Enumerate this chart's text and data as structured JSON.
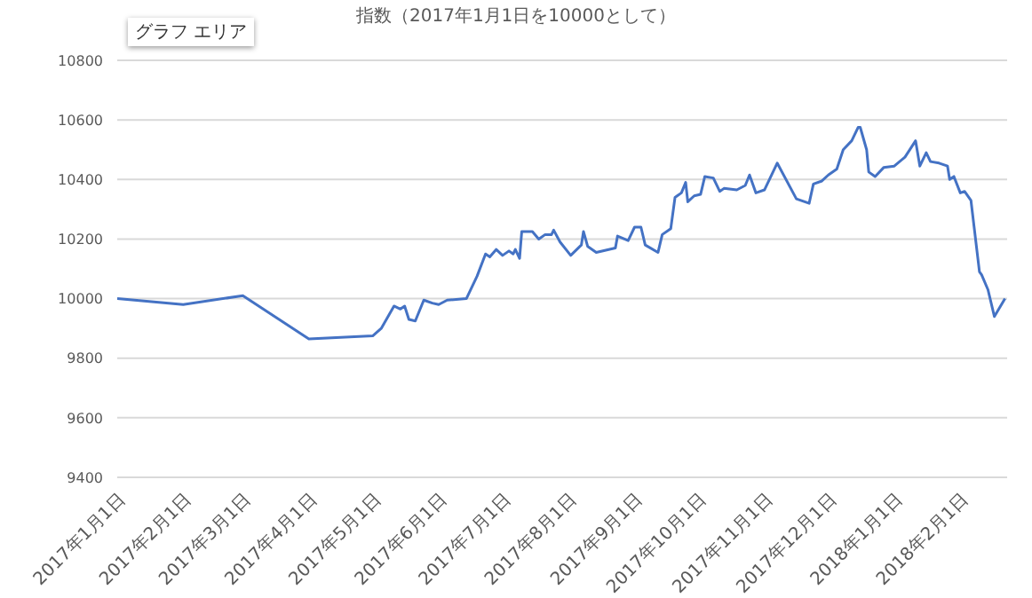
{
  "chart_data": {
    "type": "line",
    "title": "指数（2017年1月1日を10000として）",
    "annotations": [
      "グラフ エリア"
    ],
    "x": [
      "2017-01-01",
      "2017-02-01",
      "2017-03-01",
      "2017-04-01",
      "2017-05-01",
      "2017-05-05",
      "2017-05-11",
      "2017-05-14",
      "2017-05-16",
      "2017-05-18",
      "2017-05-21",
      "2017-05-25",
      "2017-05-29",
      "2017-06-01",
      "2017-06-05",
      "2017-06-14",
      "2017-06-19",
      "2017-06-23",
      "2017-06-25",
      "2017-06-28",
      "2017-07-01",
      "2017-07-04",
      "2017-07-06",
      "2017-07-07",
      "2017-07-09",
      "2017-07-10",
      "2017-07-15",
      "2017-07-18",
      "2017-07-21",
      "2017-07-24",
      "2017-07-25",
      "2017-07-28",
      "2017-08-02",
      "2017-08-07",
      "2017-08-08",
      "2017-08-10",
      "2017-08-14",
      "2017-08-23",
      "2017-08-24",
      "2017-08-29",
      "2017-09-01",
      "2017-09-04",
      "2017-09-06",
      "2017-09-12",
      "2017-09-14",
      "2017-09-18",
      "2017-09-20",
      "2017-09-23",
      "2017-09-25",
      "2017-09-26",
      "2017-09-29",
      "2017-10-02",
      "2017-10-04",
      "2017-10-08",
      "2017-10-11",
      "2017-10-13",
      "2017-10-19",
      "2017-10-23",
      "2017-10-25",
      "2017-10-28",
      "2017-11-01",
      "2017-11-07",
      "2017-11-16",
      "2017-11-22",
      "2017-11-24",
      "2017-11-28",
      "2017-12-01",
      "2017-12-05",
      "2017-12-08",
      "2017-12-12",
      "2017-12-15",
      "2017-12-16",
      "2017-12-19",
      "2017-12-20",
      "2017-12-23",
      "2017-12-27",
      "2018-01-01",
      "2018-01-06",
      "2018-01-11",
      "2018-01-13",
      "2018-01-16",
      "2018-01-18",
      "2018-01-22",
      "2018-01-26",
      "2018-01-27",
      "2018-01-29",
      "2018-02-01",
      "2018-02-03",
      "2018-02-06",
      "2018-02-10",
      "2018-02-11",
      "2018-02-14",
      "2018-02-17",
      "2018-02-22"
    ],
    "series": [
      {
        "color": "#4472c4",
        "values": [
          10000,
          9980,
          10010,
          9865,
          9875,
          9900,
          9975,
          9965,
          9975,
          9930,
          9925,
          9995,
          9985,
          9980,
          9995,
          10000,
          10075,
          10150,
          10140,
          10165,
          10145,
          10160,
          10150,
          10165,
          10135,
          10225,
          10225,
          10200,
          10215,
          10215,
          10230,
          10190,
          10145,
          10180,
          10225,
          10175,
          10155,
          10170,
          10210,
          10195,
          10240,
          10240,
          10180,
          10155,
          10215,
          10235,
          10340,
          10355,
          10390,
          10325,
          10345,
          10350,
          10410,
          10405,
          10360,
          10370,
          10365,
          10380,
          10415,
          10355,
          10365,
          10455,
          10335,
          10320,
          10385,
          10395,
          10415,
          10435,
          10500,
          10530,
          10575,
          10575,
          10500,
          10425,
          10410,
          10440,
          10445,
          10475,
          10530,
          10445,
          10490,
          10460,
          10455,
          10445,
          10400,
          10410,
          10355,
          10360,
          10330,
          10090,
          10080,
          10030,
          9940,
          10000
        ]
      }
    ],
    "xlim": [
      "2017-01-01",
      "2018-02-23"
    ],
    "xticks": [
      {
        "value": "2017-01-01",
        "label": "2017年1月1日"
      },
      {
        "value": "2017-02-01",
        "label": "2017年2月1日"
      },
      {
        "value": "2017-03-01",
        "label": "2017年3月1日"
      },
      {
        "value": "2017-04-01",
        "label": "2017年4月1日"
      },
      {
        "value": "2017-05-01",
        "label": "2017年5月1日"
      },
      {
        "value": "2017-06-01",
        "label": "2017年6月1日"
      },
      {
        "value": "2017-07-01",
        "label": "2017年7月1日"
      },
      {
        "value": "2017-08-01",
        "label": "2017年8月1日"
      },
      {
        "value": "2017-09-01",
        "label": "2017年9月1日"
      },
      {
        "value": "2017-10-01",
        "label": "2017年10月1日"
      },
      {
        "value": "2017-11-01",
        "label": "2017年11月1日"
      },
      {
        "value": "2017-12-01",
        "label": "2017年12月1日"
      },
      {
        "value": "2018-01-01",
        "label": "2018年1月1日"
      },
      {
        "value": "2018-02-01",
        "label": "2018年2月1日"
      }
    ],
    "ylim": [
      9400,
      10800
    ],
    "yticks": [
      9400,
      9600,
      9800,
      10000,
      10200,
      10400,
      10600,
      10800
    ],
    "grid": "y",
    "marker": "none",
    "line_style": "solid",
    "legend": false
  }
}
